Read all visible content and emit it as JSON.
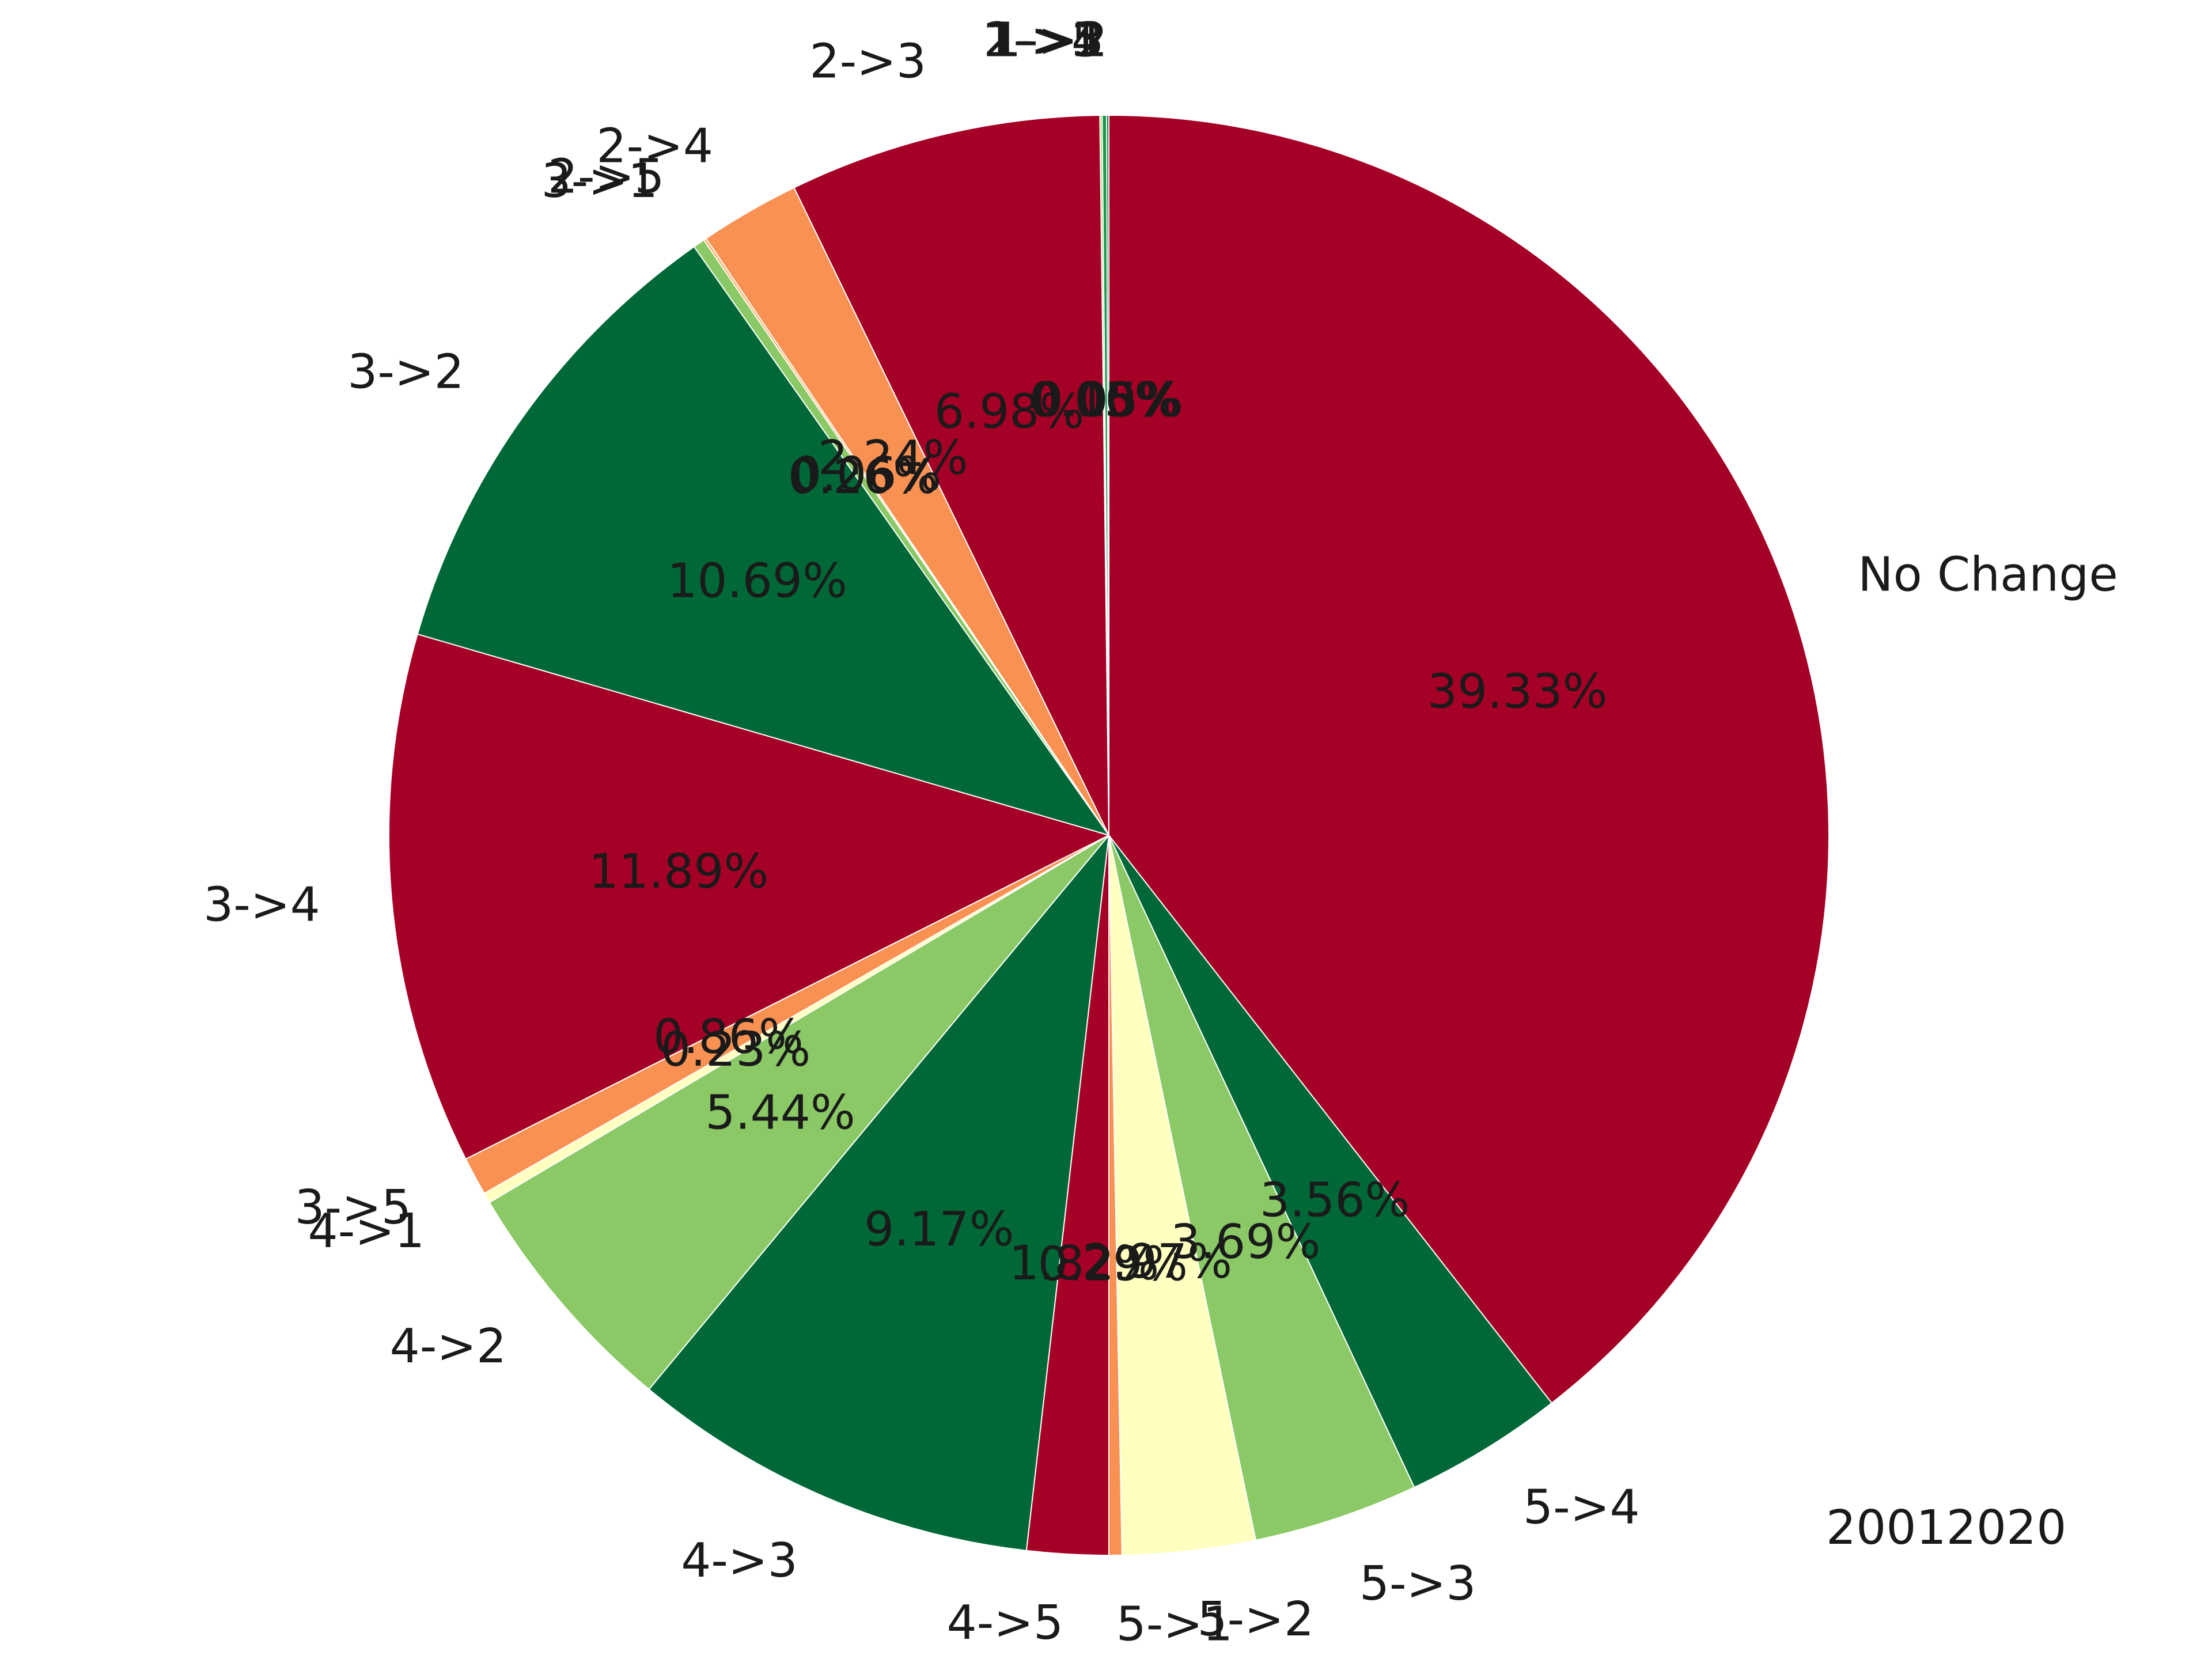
{
  "chart_data": {
    "type": "pie",
    "footer_text": "20012020",
    "start_angle_deg": 90,
    "direction": "counterclockwise",
    "slices": [
      {
        "label": "1->2",
        "percent": 0.05,
        "percent_label": "0.05%",
        "color": "#006837"
      },
      {
        "label": "1->3",
        "percent": 0.1,
        "percent_label": "0.10%",
        "color": "#1a9850"
      },
      {
        "label": "1->4",
        "percent": 0.0,
        "percent_label": "0.00%",
        "color": "#a50026"
      },
      {
        "label": "1->5",
        "percent": 0.0,
        "percent_label": "0.00%",
        "color": "#f46d43"
      },
      {
        "label": "2->1",
        "percent": 0.05,
        "percent_label": "0.05%",
        "color": "#a6d96a"
      },
      {
        "label": "2->3",
        "percent": 6.98,
        "percent_label": "6.98%",
        "color": "#a50026"
      },
      {
        "label": "2->4",
        "percent": 2.24,
        "percent_label": "2.24%",
        "color": "#f99153"
      },
      {
        "label": "2->5",
        "percent": 0.06,
        "percent_label": "0.06%",
        "color": "#fdae61"
      },
      {
        "label": "3->1",
        "percent": 0.26,
        "percent_label": "0.26%",
        "color": "#8ac966"
      },
      {
        "label": "3->2",
        "percent": 10.69,
        "percent_label": "10.69%",
        "color": "#006837"
      },
      {
        "label": "3->4",
        "percent": 11.89,
        "percent_label": "11.89%",
        "color": "#a50026"
      },
      {
        "label": "3->5",
        "percent": 0.86,
        "percent_label": "0.86%",
        "color": "#f99153"
      },
      {
        "label": "4->1",
        "percent": 0.23,
        "percent_label": "0.23%",
        "color": "#ffffbf"
      },
      {
        "label": "4->2",
        "percent": 5.44,
        "percent_label": "5.44%",
        "color": "#8ac966"
      },
      {
        "label": "4->3",
        "percent": 9.17,
        "percent_label": "9.17%",
        "color": "#006837"
      },
      {
        "label": "4->5",
        "percent": 1.82,
        "percent_label": "1.82%",
        "color": "#a50026"
      },
      {
        "label": "5->1",
        "percent": 0.29,
        "percent_label": "0.29%",
        "color": "#f99153"
      },
      {
        "label": "5->2",
        "percent": 2.97,
        "percent_label": "2.97%",
        "color": "#ffffbf"
      },
      {
        "label": "5->3",
        "percent": 3.69,
        "percent_label": "3.69%",
        "color": "#8ac966"
      },
      {
        "label": "5->4",
        "percent": 3.56,
        "percent_label": "3.56%",
        "color": "#006837"
      },
      {
        "label": "No Change",
        "percent": 39.33,
        "percent_label": "39.33%",
        "color": "#a50026"
      }
    ]
  }
}
